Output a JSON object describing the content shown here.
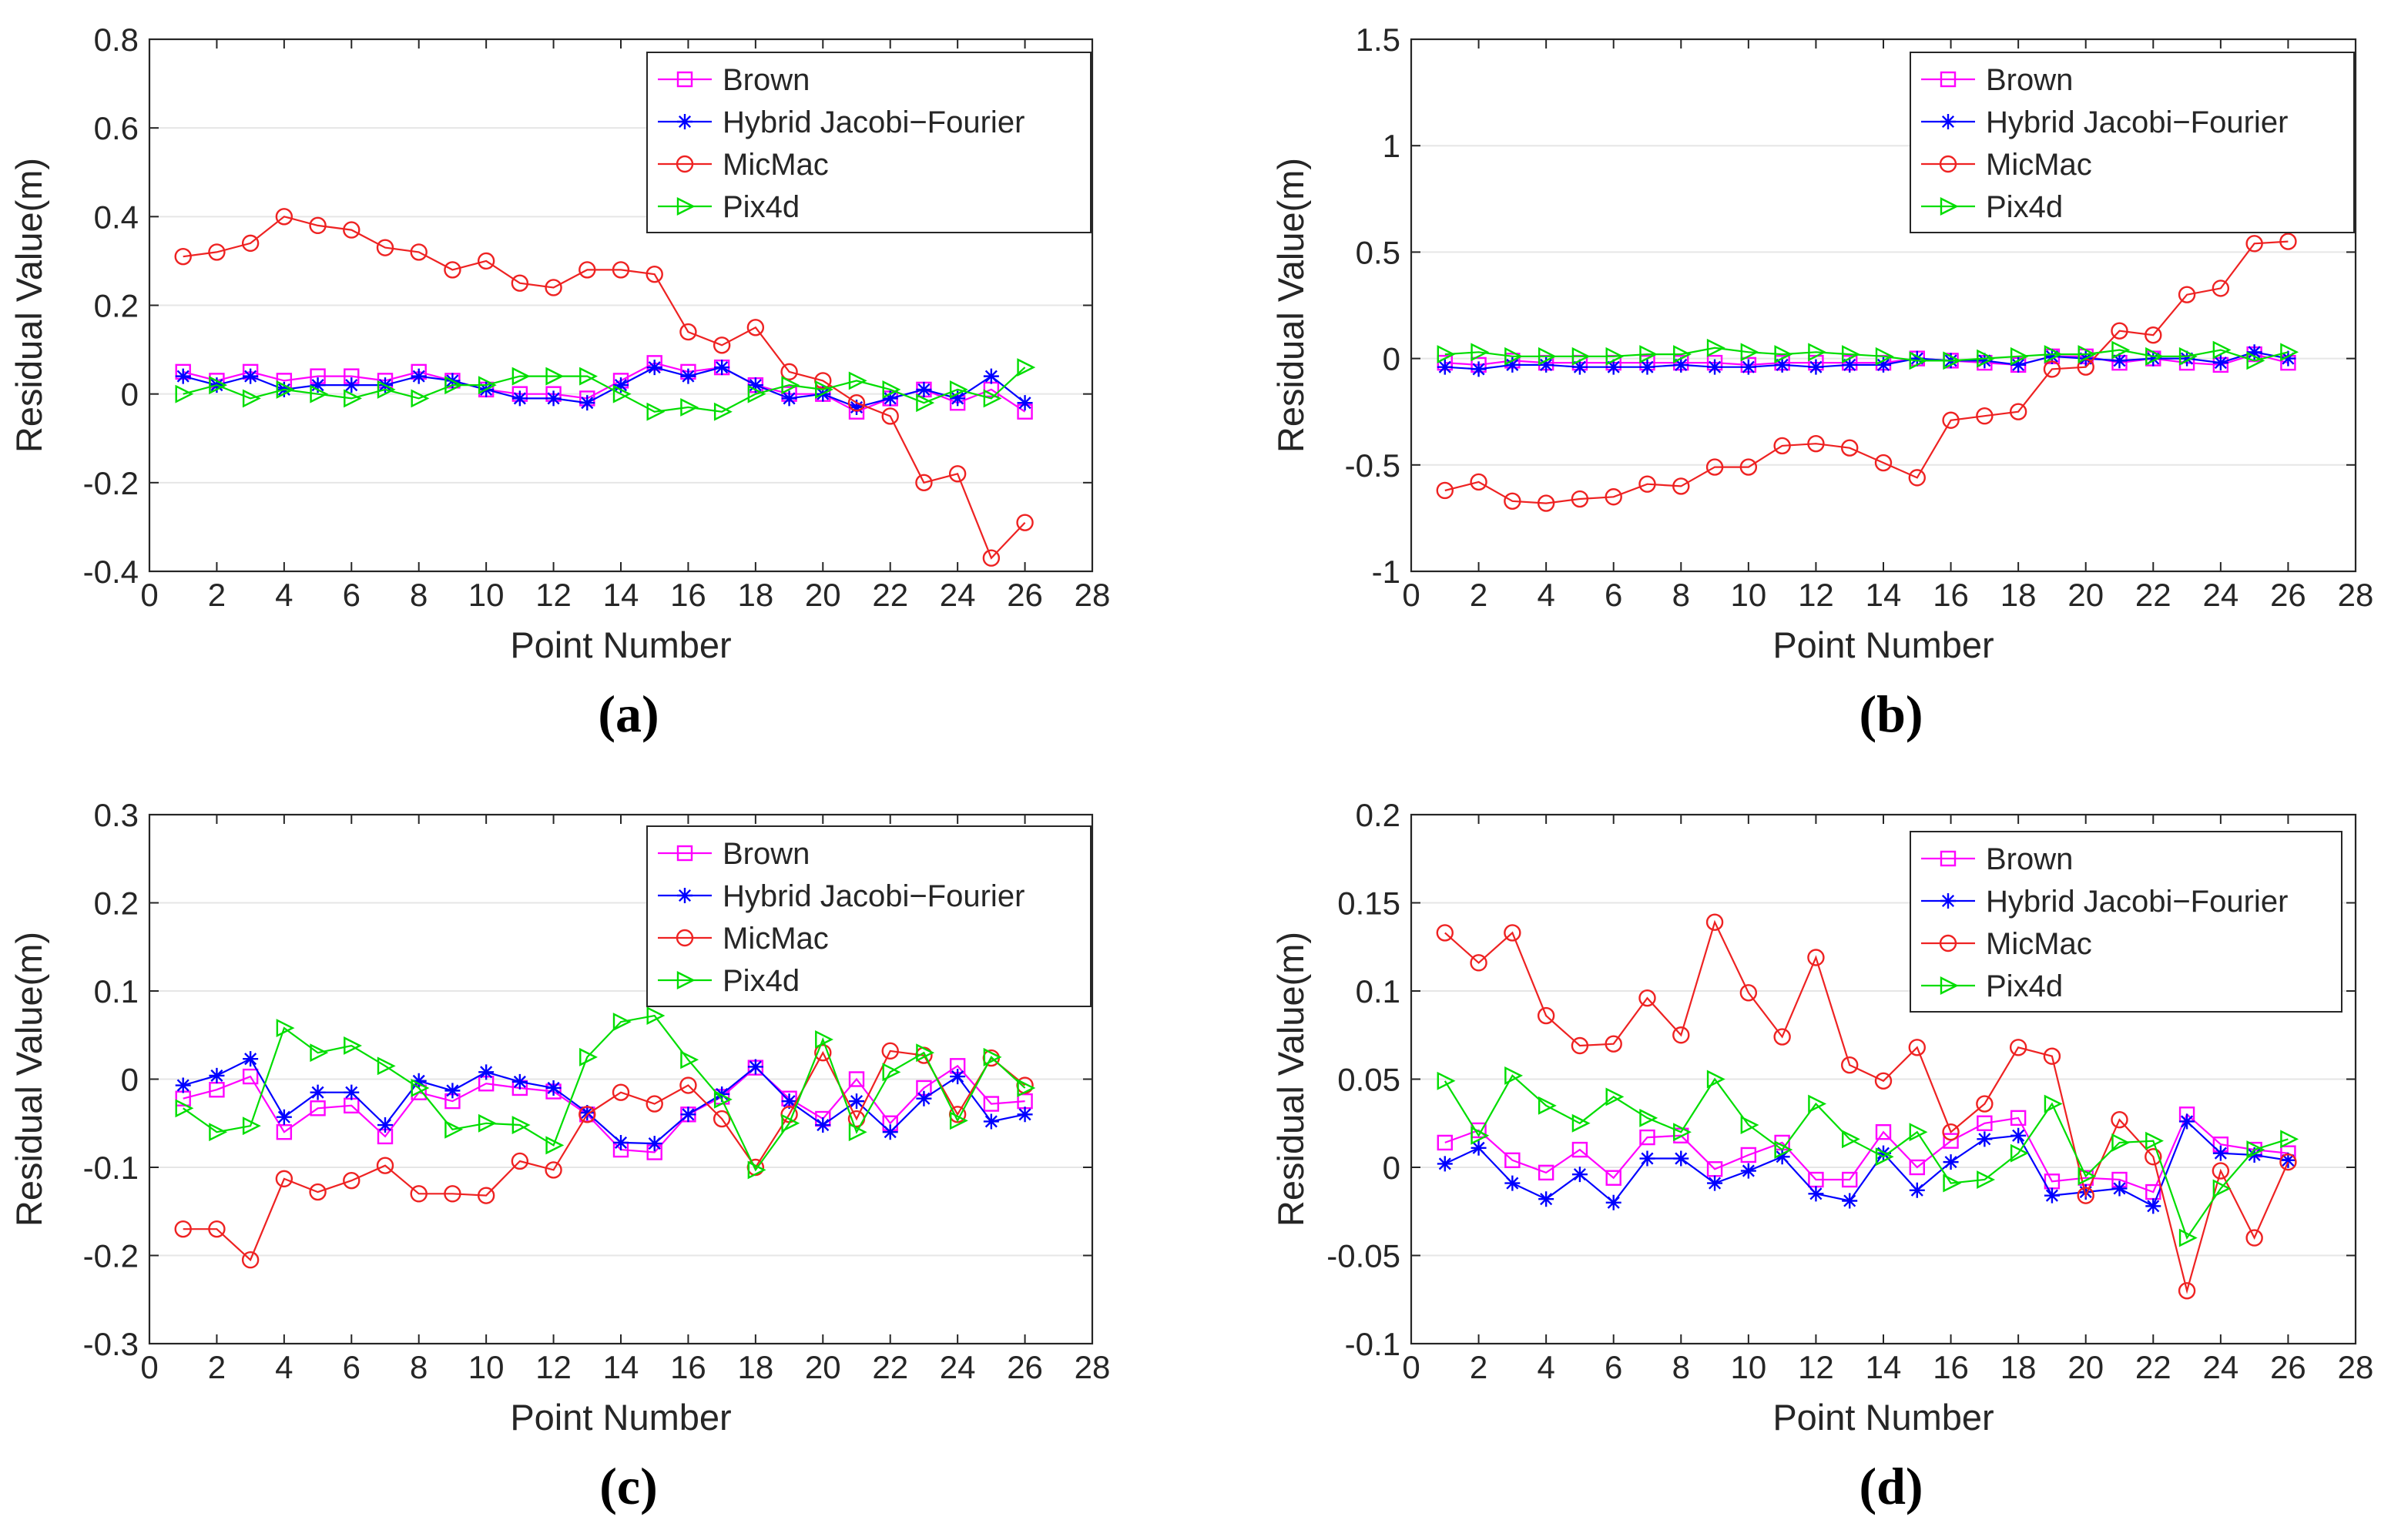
{
  "colors": {
    "brown": "#ff00ff",
    "hybrid": "#0000ff",
    "micmac": "#ee2222",
    "pix4d": "#00dd00",
    "grid": "#e6e6e6",
    "axis": "#262626"
  },
  "chart_data": [
    {
      "type": "line",
      "panel_label": "(a)",
      "xlabel": "Point Number",
      "ylabel": "Residual Value(m)",
      "xlim": [
        0,
        28
      ],
      "ylim": [
        -0.4,
        0.8
      ],
      "xticks": [
        0,
        2,
        4,
        6,
        8,
        10,
        12,
        14,
        16,
        18,
        20,
        22,
        24,
        26,
        28
      ],
      "xtick_labels": [
        "0",
        "2",
        "4",
        "6",
        "8",
        "10",
        "12",
        "14",
        "16",
        "18",
        "20",
        "22",
        "24",
        "26",
        "28"
      ],
      "yticks": [
        -0.4,
        -0.2,
        0,
        0.2,
        0.4,
        0.6,
        0.8
      ],
      "ytick_labels": [
        "-0.4",
        "-0.2",
        "0",
        "0.2",
        "0.4",
        "0.6",
        "0.8"
      ],
      "grid": true,
      "legend_position": "top-right",
      "x": [
        1,
        2,
        3,
        4,
        5,
        6,
        7,
        8,
        9,
        10,
        11,
        12,
        13,
        14,
        15,
        16,
        17,
        18,
        19,
        20,
        21,
        22,
        23,
        24,
        25,
        26
      ],
      "series": [
        {
          "name": "Brown",
          "marker": "square",
          "values": [
            0.05,
            0.03,
            0.05,
            0.03,
            0.04,
            0.04,
            0.03,
            0.05,
            0.03,
            0.01,
            0.0,
            0.0,
            -0.01,
            0.03,
            0.07,
            0.05,
            0.06,
            0.02,
            0.0,
            0.0,
            -0.04,
            -0.01,
            0.01,
            -0.02,
            0.01,
            -0.04
          ]
        },
        {
          "name": "Hybrid Jacobi−Fourier",
          "marker": "star",
          "values": [
            0.04,
            0.02,
            0.04,
            0.01,
            0.02,
            0.02,
            0.02,
            0.04,
            0.03,
            0.01,
            -0.01,
            -0.01,
            -0.02,
            0.02,
            0.06,
            0.04,
            0.06,
            0.02,
            -0.01,
            0.0,
            -0.03,
            -0.01,
            0.01,
            -0.01,
            0.04,
            -0.02
          ]
        },
        {
          "name": "MicMac",
          "marker": "circle",
          "values": [
            0.31,
            0.32,
            0.34,
            0.4,
            0.38,
            0.37,
            0.33,
            0.32,
            0.28,
            0.3,
            0.25,
            0.24,
            0.28,
            0.28,
            0.27,
            0.14,
            0.11,
            0.15,
            0.05,
            0.03,
            -0.02,
            -0.05,
            -0.2,
            -0.18,
            -0.37,
            -0.29
          ]
        },
        {
          "name": "Pix4d",
          "marker": "triangle-right",
          "values": [
            0.0,
            0.02,
            -0.01,
            0.01,
            0.0,
            -0.01,
            0.01,
            -0.01,
            0.02,
            0.02,
            0.04,
            0.04,
            0.04,
            0.0,
            -0.04,
            -0.03,
            -0.04,
            0.0,
            0.02,
            0.01,
            0.03,
            0.01,
            -0.02,
            0.01,
            -0.01,
            0.06
          ]
        }
      ]
    },
    {
      "type": "line",
      "panel_label": "(b)",
      "xlabel": "Point Number",
      "ylabel": "Residual Value(m)",
      "xlim": [
        0,
        28
      ],
      "ylim": [
        -1,
        1.5
      ],
      "xticks": [
        0,
        2,
        4,
        6,
        8,
        10,
        12,
        14,
        16,
        18,
        20,
        22,
        24,
        26,
        28
      ],
      "xtick_labels": [
        "0",
        "2",
        "4",
        "6",
        "8",
        "10",
        "12",
        "14",
        "16",
        "18",
        "20",
        "22",
        "24",
        "26",
        "28"
      ],
      "yticks": [
        -1,
        -0.5,
        0,
        0.5,
        1,
        1.5
      ],
      "ytick_labels": [
        "-1",
        "-0.5",
        "0",
        "0.5",
        "1",
        "1.5"
      ],
      "grid": true,
      "legend_position": "top-right",
      "x": [
        1,
        2,
        3,
        4,
        5,
        6,
        7,
        8,
        9,
        10,
        11,
        12,
        13,
        14,
        15,
        16,
        17,
        18,
        19,
        20,
        21,
        22,
        23,
        24,
        25,
        26
      ],
      "series": [
        {
          "name": "Brown",
          "marker": "square",
          "values": [
            -0.02,
            -0.03,
            -0.01,
            -0.02,
            -0.02,
            -0.02,
            -0.02,
            -0.02,
            -0.02,
            -0.03,
            -0.02,
            -0.02,
            -0.02,
            -0.02,
            0.0,
            -0.01,
            -0.02,
            -0.03,
            0.01,
            0.01,
            -0.02,
            0.0,
            -0.02,
            -0.03,
            0.02,
            -0.02
          ]
        },
        {
          "name": "Hybrid Jacobi−Fourier",
          "marker": "star",
          "values": [
            -0.04,
            -0.05,
            -0.03,
            -0.03,
            -0.04,
            -0.04,
            -0.04,
            -0.03,
            -0.04,
            -0.04,
            -0.03,
            -0.04,
            -0.03,
            -0.03,
            0.0,
            -0.01,
            -0.01,
            -0.03,
            0.01,
            0.0,
            -0.01,
            0.0,
            0.0,
            -0.02,
            0.03,
            0.0
          ]
        },
        {
          "name": "MicMac",
          "marker": "circle",
          "values": [
            -0.62,
            -0.58,
            -0.67,
            -0.68,
            -0.66,
            -0.65,
            -0.59,
            -0.6,
            -0.51,
            -0.51,
            -0.41,
            -0.4,
            -0.42,
            -0.49,
            -0.56,
            -0.29,
            -0.27,
            -0.25,
            -0.05,
            -0.04,
            0.13,
            0.11,
            0.3,
            0.33,
            0.54,
            0.55
          ]
        },
        {
          "name": "Pix4d",
          "marker": "triangle-right",
          "values": [
            0.02,
            0.03,
            0.01,
            0.01,
            0.01,
            0.01,
            0.02,
            0.02,
            0.05,
            0.03,
            0.02,
            0.03,
            0.02,
            0.01,
            -0.01,
            -0.01,
            0.0,
            0.01,
            0.02,
            0.02,
            0.04,
            0.01,
            0.01,
            0.04,
            -0.01,
            0.03
          ]
        }
      ]
    },
    {
      "type": "line",
      "panel_label": "(c)",
      "xlabel": "Point Number",
      "ylabel": "Residual Value(m)",
      "xlim": [
        0,
        28
      ],
      "ylim": [
        -0.3,
        0.3
      ],
      "xticks": [
        0,
        2,
        4,
        6,
        8,
        10,
        12,
        14,
        16,
        18,
        20,
        22,
        24,
        26,
        28
      ],
      "xtick_labels": [
        "0",
        "2",
        "4",
        "6",
        "8",
        "10",
        "12",
        "14",
        "16",
        "18",
        "20",
        "22",
        "24",
        "26",
        "28"
      ],
      "yticks": [
        -0.3,
        -0.2,
        -0.1,
        0,
        0.1,
        0.2,
        0.3
      ],
      "ytick_labels": [
        "-0.3",
        "-0.2",
        "-0.1",
        "0",
        "0.1",
        "0.2",
        "0.3"
      ],
      "grid": true,
      "legend_position": "top-right",
      "x": [
        1,
        2,
        3,
        4,
        5,
        6,
        7,
        8,
        9,
        10,
        11,
        12,
        13,
        14,
        15,
        16,
        17,
        18,
        19,
        20,
        21,
        22,
        23,
        24,
        25,
        26
      ],
      "series": [
        {
          "name": "Brown",
          "marker": "square",
          "values": [
            -0.022,
            -0.012,
            0.003,
            -0.06,
            -0.033,
            -0.03,
            -0.065,
            -0.015,
            -0.025,
            -0.005,
            -0.01,
            -0.014,
            -0.04,
            -0.08,
            -0.083,
            -0.04,
            -0.02,
            0.013,
            -0.022,
            -0.045,
            0.0,
            -0.05,
            -0.01,
            0.015,
            -0.028,
            -0.025
          ]
        },
        {
          "name": "Hybrid Jacobi−Fourier",
          "marker": "star",
          "values": [
            -0.007,
            0.004,
            0.023,
            -0.043,
            -0.015,
            -0.015,
            -0.052,
            -0.002,
            -0.013,
            0.008,
            -0.003,
            -0.01,
            -0.038,
            -0.072,
            -0.073,
            -0.04,
            -0.017,
            0.014,
            -0.025,
            -0.052,
            -0.025,
            -0.06,
            -0.022,
            0.003,
            -0.048,
            -0.04
          ]
        },
        {
          "name": "MicMac",
          "marker": "circle",
          "values": [
            -0.17,
            -0.17,
            -0.205,
            -0.113,
            -0.128,
            -0.115,
            -0.098,
            -0.13,
            -0.13,
            -0.132,
            -0.093,
            -0.103,
            -0.04,
            -0.015,
            -0.028,
            -0.007,
            -0.045,
            -0.1,
            -0.04,
            0.03,
            -0.045,
            0.032,
            0.027,
            -0.04,
            0.024,
            -0.007
          ]
        },
        {
          "name": "Pix4d",
          "marker": "triangle-right",
          "values": [
            -0.033,
            -0.06,
            -0.053,
            0.058,
            0.03,
            0.038,
            0.015,
            -0.01,
            -0.057,
            -0.05,
            -0.052,
            -0.075,
            0.025,
            0.065,
            0.072,
            0.022,
            -0.023,
            -0.103,
            -0.05,
            0.045,
            -0.06,
            0.008,
            0.03,
            -0.047,
            0.025,
            -0.01
          ]
        }
      ]
    },
    {
      "type": "line",
      "panel_label": "(d)",
      "xlabel": "Point Number",
      "ylabel": "Residual Value(m)",
      "xlim": [
        0,
        28
      ],
      "ylim": [
        -0.1,
        0.2
      ],
      "xticks": [
        0,
        2,
        4,
        6,
        8,
        10,
        12,
        14,
        16,
        18,
        20,
        22,
        24,
        26,
        28
      ],
      "xtick_labels": [
        "0",
        "2",
        "4",
        "6",
        "8",
        "10",
        "12",
        "14",
        "16",
        "18",
        "20",
        "22",
        "24",
        "26",
        "28"
      ],
      "yticks": [
        -0.1,
        -0.05,
        0,
        0.05,
        0.1,
        0.15,
        0.2
      ],
      "ytick_labels": [
        "-0.1",
        "-0.05",
        "0",
        "0.05",
        "0.1",
        "0.15",
        "0.2"
      ],
      "grid": true,
      "legend_position": "top-right",
      "x": [
        1,
        2,
        3,
        4,
        5,
        6,
        7,
        8,
        9,
        10,
        11,
        12,
        13,
        14,
        15,
        16,
        17,
        18,
        19,
        20,
        21,
        22,
        23,
        24,
        25,
        26
      ],
      "series": [
        {
          "name": "Brown",
          "marker": "square",
          "values": [
            0.014,
            0.021,
            0.004,
            -0.003,
            0.01,
            -0.006,
            0.017,
            0.018,
            -0.001,
            0.007,
            0.014,
            -0.007,
            -0.007,
            0.02,
            0.0,
            0.015,
            0.025,
            0.028,
            -0.008,
            -0.006,
            -0.007,
            -0.014,
            0.03,
            0.013,
            0.01,
            0.008
          ]
        },
        {
          "name": "Hybrid Jacobi−Fourier",
          "marker": "star",
          "values": [
            0.002,
            0.011,
            -0.009,
            -0.018,
            -0.004,
            -0.02,
            0.005,
            0.005,
            -0.009,
            -0.002,
            0.006,
            -0.015,
            -0.019,
            0.008,
            -0.013,
            0.003,
            0.016,
            0.018,
            -0.016,
            -0.014,
            -0.012,
            -0.022,
            0.026,
            0.008,
            0.007,
            0.004
          ]
        },
        {
          "name": "MicMac",
          "marker": "circle",
          "values": [
            0.133,
            0.116,
            0.133,
            0.086,
            0.069,
            0.07,
            0.096,
            0.075,
            0.139,
            0.099,
            0.074,
            0.119,
            0.058,
            0.049,
            0.068,
            0.02,
            0.036,
            0.068,
            0.063,
            -0.016,
            0.027,
            0.006,
            -0.07,
            -0.002,
            -0.04,
            0.003
          ]
        },
        {
          "name": "Pix4d",
          "marker": "triangle-right",
          "values": [
            0.049,
            0.018,
            0.052,
            0.035,
            0.025,
            0.04,
            0.028,
            0.02,
            0.05,
            0.024,
            0.01,
            0.036,
            0.016,
            0.006,
            0.02,
            -0.009,
            -0.007,
            0.008,
            0.036,
            -0.005,
            0.014,
            0.015,
            -0.04,
            -0.012,
            0.01,
            0.016
          ]
        }
      ]
    }
  ]
}
